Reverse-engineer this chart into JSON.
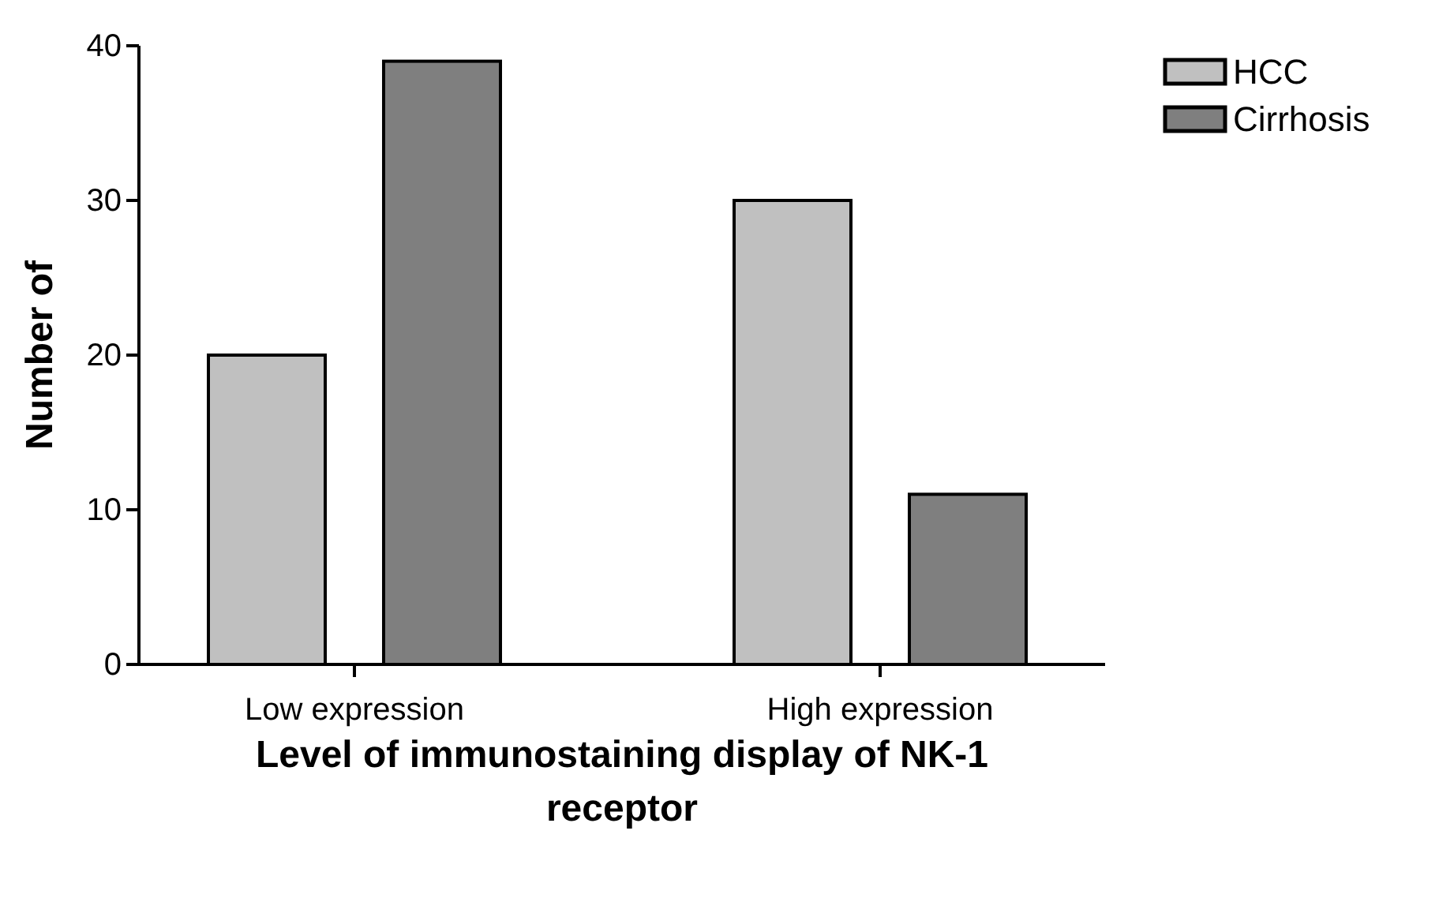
{
  "chart_data": {
    "type": "bar",
    "xlabel": "Level of immunostaining display of NK-1 receptor",
    "ylabel": "Number of",
    "categories": [
      "Low expression",
      "High expression"
    ],
    "series": [
      {
        "name": "HCC",
        "color": "#c0c0c0",
        "values": [
          20,
          30
        ]
      },
      {
        "name": "Cirrhosis",
        "color": "#7f7f7f",
        "values": [
          39,
          11
        ]
      }
    ],
    "ylim": [
      0,
      40
    ],
    "yticks": [
      0,
      10,
      20,
      30,
      40
    ],
    "grid": false,
    "legend": "top right"
  }
}
